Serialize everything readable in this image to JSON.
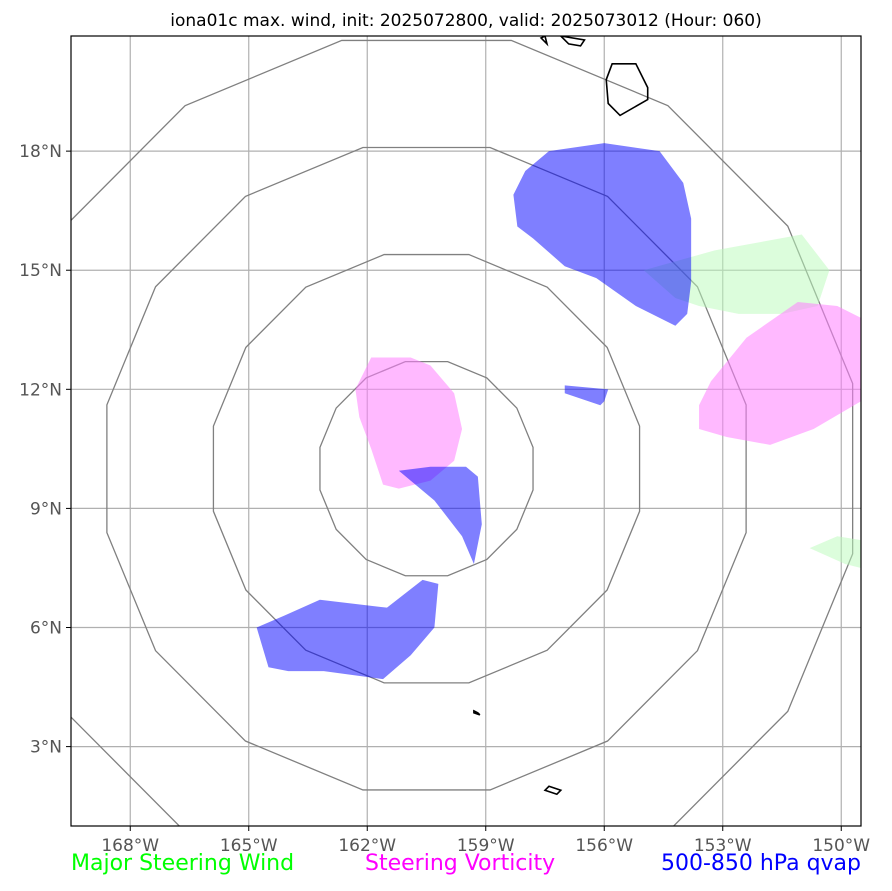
{
  "chart_data": {
    "type": "map",
    "title": "iona01c max. wind, init: 2025072800, valid: 2025073012 (Hour: 060)",
    "lon_range": [
      -169.5,
      -149.5
    ],
    "lat_range": [
      1.0,
      20.9
    ],
    "x_ticks": [
      -168,
      -165,
      -162,
      -159,
      -156,
      -153,
      -150
    ],
    "x_tick_labels": [
      "168°W",
      "165°W",
      "162°W",
      "159°W",
      "156°W",
      "153°W",
      "150°W"
    ],
    "y_ticks": [
      3,
      6,
      9,
      12,
      15,
      18
    ],
    "y_tick_labels": [
      "3°N",
      "6°N",
      "9°N",
      "12°N",
      "15°N",
      "18°N"
    ],
    "grid": true,
    "range_rings": {
      "center": [
        -160.5,
        10.0
      ],
      "radii_deg": [
        2.75,
        5.5,
        8.25,
        11.0
      ],
      "color": "#808080"
    },
    "legend": [
      {
        "name": "Major Steering Wind",
        "color": "#00ff00"
      },
      {
        "name": "Steering Vorticity",
        "color": "#ff00ff"
      },
      {
        "name": "500-850 hPa qvap",
        "color": "#0000ff"
      }
    ],
    "wind_regions": [
      {
        "fill": "#b9fbb9",
        "opacity": 0.5,
        "points": [
          [
            -155,
            15
          ],
          [
            -153.2,
            15.5
          ],
          [
            -151,
            15.9
          ],
          [
            -150.3,
            15
          ],
          [
            -150.6,
            14.1
          ],
          [
            -151.5,
            13.9
          ],
          [
            -152.6,
            13.9
          ],
          [
            -153.6,
            14.1
          ],
          [
            -154.2,
            14.3
          ]
        ]
      },
      {
        "fill": "#b9fbb9",
        "opacity": 0.5,
        "points": [
          [
            -150.8,
            8.0
          ],
          [
            -150.1,
            8.3
          ],
          [
            -149.5,
            8.2
          ],
          [
            -149.5,
            7.5
          ],
          [
            -149.9,
            7.6
          ]
        ]
      }
    ],
    "vorticity_regions": [
      {
        "fill": "#ff80ff",
        "opacity": 0.55,
        "points": [
          [
            -162.3,
            12.0
          ],
          [
            -161.9,
            12.8
          ],
          [
            -160.9,
            12.8
          ],
          [
            -160.4,
            12.6
          ],
          [
            -159.8,
            11.9
          ],
          [
            -159.6,
            11.0
          ],
          [
            -159.8,
            10.2
          ],
          [
            -160.4,
            9.7
          ],
          [
            -161.2,
            9.5
          ],
          [
            -161.6,
            9.6
          ],
          [
            -161.9,
            10.5
          ],
          [
            -162.2,
            11.3
          ]
        ]
      },
      {
        "fill": "#ff80ff",
        "opacity": 0.55,
        "points": [
          [
            -153.6,
            11.6
          ],
          [
            -153.3,
            12.2
          ],
          [
            -152.4,
            13.3
          ],
          [
            -151.1,
            14.2
          ],
          [
            -150.1,
            14.1
          ],
          [
            -149.5,
            13.8
          ],
          [
            -149.5,
            11.7
          ],
          [
            -150.7,
            11.0
          ],
          [
            -151.8,
            10.6
          ],
          [
            -152.9,
            10.8
          ],
          [
            -153.6,
            11.0
          ]
        ]
      }
    ],
    "qvap_regions": [
      {
        "fill": "#0000ff",
        "opacity": 0.5,
        "points": [
          [
            -158.3,
            16.9
          ],
          [
            -158.0,
            17.5
          ],
          [
            -157.4,
            18.0
          ],
          [
            -156.0,
            18.2
          ],
          [
            -154.6,
            18.0
          ],
          [
            -154.0,
            17.2
          ],
          [
            -153.8,
            16.3
          ],
          [
            -153.8,
            14.7
          ],
          [
            -153.9,
            13.9
          ],
          [
            -154.2,
            13.6
          ],
          [
            -155.2,
            14.1
          ],
          [
            -156.2,
            14.8
          ],
          [
            -157.0,
            15.1
          ],
          [
            -157.8,
            15.8
          ],
          [
            -158.2,
            16.1
          ]
        ]
      },
      {
        "fill": "#0000ff",
        "opacity": 0.5,
        "points": [
          [
            -157.0,
            12.1
          ],
          [
            -155.9,
            12.0
          ],
          [
            -156.0,
            11.7
          ],
          [
            -156.1,
            11.6
          ],
          [
            -157.0,
            11.9
          ]
        ]
      },
      {
        "fill": "#0000ff",
        "opacity": 0.5,
        "points": [
          [
            -161.2,
            9.95
          ],
          [
            -160.4,
            10.05
          ],
          [
            -159.5,
            10.05
          ],
          [
            -159.2,
            9.8
          ],
          [
            -159.1,
            8.6
          ],
          [
            -159.3,
            7.6
          ],
          [
            -159.6,
            8.3
          ],
          [
            -160.3,
            9.2
          ]
        ]
      },
      {
        "fill": "#0000ff",
        "opacity": 0.5,
        "points": [
          [
            -164.8,
            6.0
          ],
          [
            -164.1,
            6.3
          ],
          [
            -163.2,
            6.7
          ],
          [
            -161.5,
            6.5
          ],
          [
            -160.6,
            7.2
          ],
          [
            -160.2,
            7.1
          ],
          [
            -160.3,
            6.0
          ],
          [
            -160.9,
            5.3
          ],
          [
            -161.6,
            4.7
          ],
          [
            -163.1,
            4.9
          ],
          [
            -164.0,
            4.9
          ],
          [
            -164.5,
            5.0
          ]
        ]
      }
    ],
    "land_outlines": [
      [
        [
          -155.8,
          20.2
        ],
        [
          -155.2,
          20.2
        ],
        [
          -154.9,
          19.6
        ],
        [
          -154.9,
          19.3
        ],
        [
          -155.6,
          18.9
        ],
        [
          -155.9,
          19.2
        ],
        [
          -155.95,
          19.8
        ]
      ],
      [
        [
          -159.3,
          3.9
        ],
        [
          -159.2,
          3.85
        ],
        [
          -159.15,
          3.8
        ],
        [
          -159.3,
          3.85
        ]
      ],
      [
        [
          -157.4,
          2.0
        ],
        [
          -157.1,
          1.9
        ],
        [
          -157.2,
          1.8
        ],
        [
          -157.5,
          1.9
        ]
      ],
      [
        [
          -157.1,
          20.9
        ],
        [
          -156.9,
          20.7
        ],
        [
          -156.6,
          20.65
        ],
        [
          -156.5,
          20.8
        ]
      ],
      [
        [
          -157.6,
          20.85
        ],
        [
          -157.45,
          20.7
        ],
        [
          -157.5,
          20.9
        ]
      ]
    ]
  }
}
